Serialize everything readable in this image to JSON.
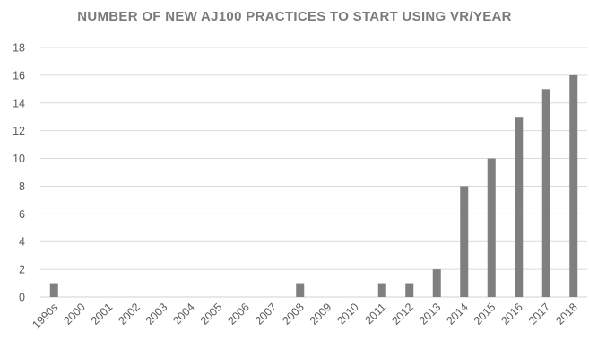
{
  "chart_data": {
    "type": "bar",
    "title": "NUMBER OF NEW AJ100 PRACTICES TO START USING VR/YEAR",
    "categories": [
      "1990s",
      "2000",
      "2001",
      "2002",
      "2003",
      "2004",
      "2005",
      "2006",
      "2007",
      "2008",
      "2009",
      "2010",
      "2011",
      "2012",
      "2013",
      "2014",
      "2015",
      "2016",
      "2017",
      "2018"
    ],
    "values": [
      1,
      0,
      0,
      0,
      0,
      0,
      0,
      0,
      0,
      1,
      0,
      0,
      1,
      1,
      2,
      8,
      10,
      13,
      15,
      16
    ],
    "ylim": [
      0,
      18
    ],
    "yticks": [
      0,
      2,
      4,
      6,
      8,
      10,
      12,
      14,
      16,
      18
    ],
    "grid": true,
    "bar_color": "#7f7f7f",
    "grid_color": "#d9d9d9",
    "xlabel": "",
    "ylabel": ""
  }
}
